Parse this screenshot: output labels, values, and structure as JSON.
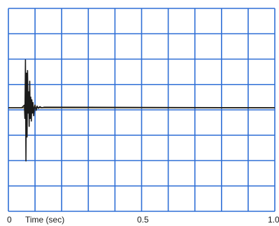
{
  "chart_data": {
    "type": "line",
    "xlabel": "Time (sec)",
    "x_tick_labels": [
      "0",
      "0.5",
      "1.0"
    ],
    "x_tick_values": [
      0,
      0.5,
      1.0
    ],
    "xlim": [
      0,
      1.0
    ],
    "ylim": [
      -1,
      1
    ],
    "grid": true,
    "grid_color": "#2f6fd6",
    "trace_color": "#1a1a1a",
    "baseline_color": "#7a6a3a",
    "series": [
      {
        "x": [
          0,
          0.05,
          0.06,
          0.062,
          0.064,
          0.066,
          0.068,
          0.07,
          0.072,
          0.074,
          0.076,
          0.078,
          0.08,
          0.082,
          0.084,
          0.086,
          0.088,
          0.09,
          0.092,
          0.095,
          0.098,
          0.1,
          0.104,
          0.108,
          0.112,
          0.118,
          0.125,
          0.135,
          1.0
        ],
        "y": [
          0,
          0,
          0.05,
          -0.2,
          0.9,
          -1.0,
          0.65,
          -0.55,
          0.7,
          -0.1,
          0.3,
          -0.35,
          0.5,
          -0.2,
          0.2,
          -0.25,
          0.15,
          -0.1,
          0.1,
          -0.15,
          0.02,
          0.05,
          -0.05,
          0.03,
          -0.01,
          0.02,
          0.0,
          0.01,
          0
        ]
      }
    ]
  }
}
